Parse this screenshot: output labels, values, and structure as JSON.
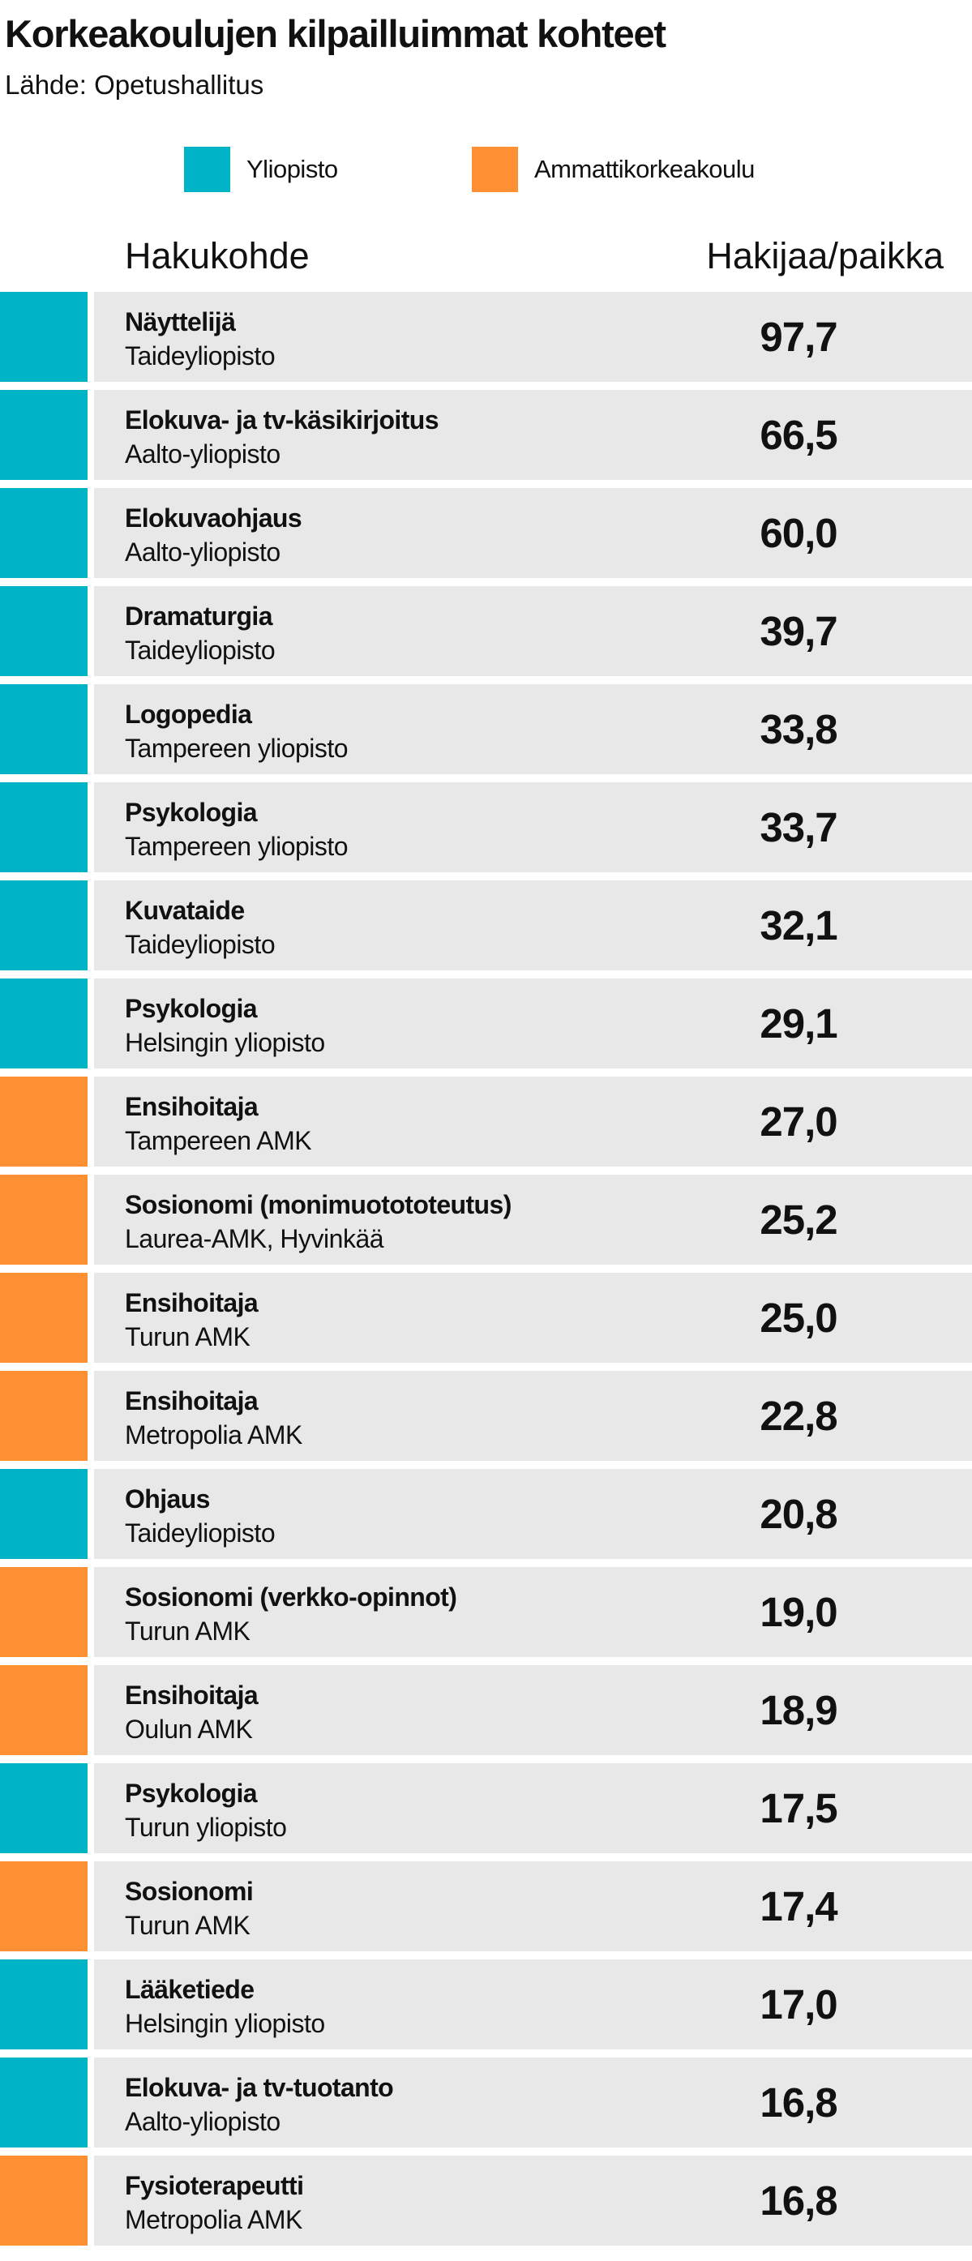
{
  "colors": {
    "yliopisto": "#00b3c7",
    "amk": "#ff8f33",
    "row_bg": "#e8e8e8"
  },
  "chart_data": {
    "type": "table",
    "title": "Korkeakoulujen kilpailluimmat kohteet",
    "source": "Lähde: Opetushallitus",
    "legend": [
      {
        "key": "yliopisto",
        "label": "Yliopisto"
      },
      {
        "key": "amk",
        "label": "Ammattikorkeakoulu"
      }
    ],
    "columns": [
      "Hakukohde",
      "Hakijaa/paikka"
    ],
    "rows": [
      {
        "name": "Näyttelijä",
        "org": "Taideyliopisto",
        "value": "97,7",
        "type": "yliopisto"
      },
      {
        "name": "Elokuva- ja tv-käsikirjoitus",
        "org": "Aalto-yliopisto",
        "value": "66,5",
        "type": "yliopisto"
      },
      {
        "name": "Elokuvaohjaus",
        "org": "Aalto-yliopisto",
        "value": "60,0",
        "type": "yliopisto"
      },
      {
        "name": "Dramaturgia",
        "org": "Taideyliopisto",
        "value": "39,7",
        "type": "yliopisto"
      },
      {
        "name": "Logopedia",
        "org": "Tampereen yliopisto",
        "value": "33,8",
        "type": "yliopisto"
      },
      {
        "name": "Psykologia",
        "org": "Tampereen yliopisto",
        "value": "33,7",
        "type": "yliopisto"
      },
      {
        "name": "Kuvataide",
        "org": "Taideyliopisto",
        "value": "32,1",
        "type": "yliopisto"
      },
      {
        "name": "Psykologia",
        "org": "Helsingin yliopisto",
        "value": "29,1",
        "type": "yliopisto"
      },
      {
        "name": "Ensihoitaja",
        "org": "Tampereen AMK",
        "value": "27,0",
        "type": "amk"
      },
      {
        "name": "Sosionomi (monimuotototeutus)",
        "org": "Laurea-AMK, Hyvinkää",
        "value": "25,2",
        "type": "amk"
      },
      {
        "name": "Ensihoitaja",
        "org": "Turun AMK",
        "value": "25,0",
        "type": "amk"
      },
      {
        "name": "Ensihoitaja",
        "org": "Metropolia AMK",
        "value": "22,8",
        "type": "amk"
      },
      {
        "name": "Ohjaus",
        "org": "Taideyliopisto",
        "value": "20,8",
        "type": "yliopisto"
      },
      {
        "name": "Sosionomi (verkko-opinnot)",
        "org": "Turun AMK",
        "value": "19,0",
        "type": "amk"
      },
      {
        "name": "Ensihoitaja",
        "org": "Oulun AMK",
        "value": "18,9",
        "type": "amk"
      },
      {
        "name": "Psykologia",
        "org": "Turun yliopisto",
        "value": "17,5",
        "type": "yliopisto"
      },
      {
        "name": "Sosionomi",
        "org": "Turun AMK",
        "value": "17,4",
        "type": "amk"
      },
      {
        "name": "Lääketiede",
        "org": "Helsingin yliopisto",
        "value": "17,0",
        "type": "yliopisto"
      },
      {
        "name": "Elokuva- ja tv-tuotanto",
        "org": "Aalto-yliopisto",
        "value": "16,8",
        "type": "yliopisto"
      },
      {
        "name": "Fysioterapeutti",
        "org": "Metropolia AMK",
        "value": "16,8",
        "type": "amk"
      }
    ]
  }
}
